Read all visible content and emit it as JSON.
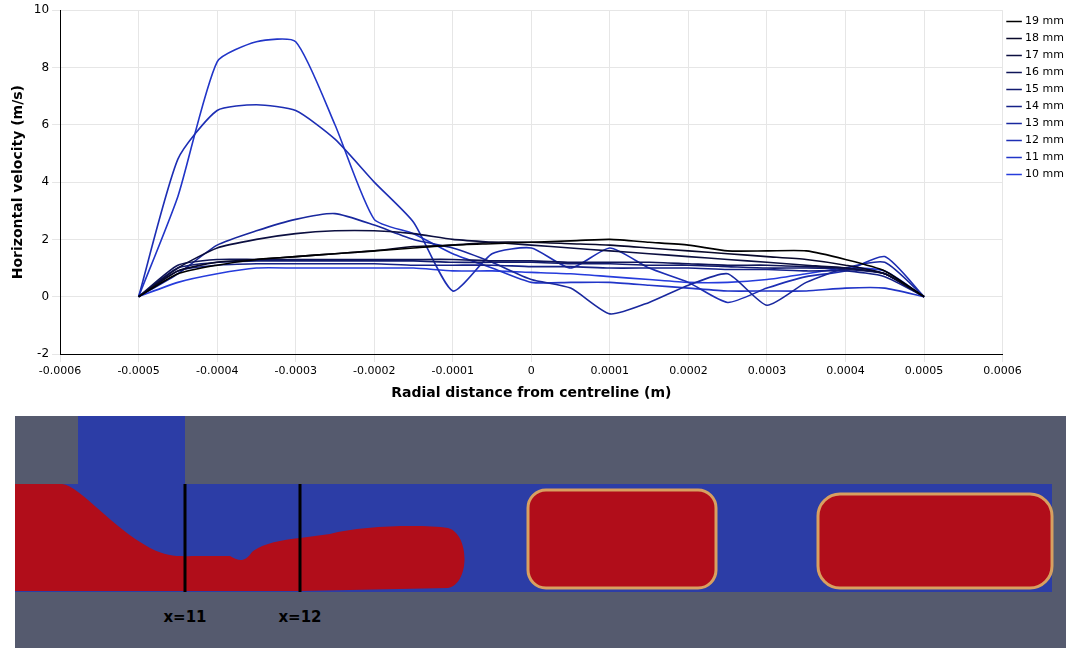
{
  "chart_data": {
    "type": "line",
    "x_label": "Radial distance from centreline (m)",
    "y_label": "Horizontal velocity (m/s)",
    "x": [
      -0.0005,
      -0.00045,
      -0.0004,
      -0.00035,
      -0.0003,
      -0.00025,
      -0.0002,
      -0.00015,
      -0.0001,
      -5e-05,
      0,
      5e-05,
      0.0001,
      0.00015,
      0.0002,
      0.00025,
      0.0003,
      0.00035,
      0.0004,
      0.00045,
      0.0005
    ],
    "series": [
      {
        "name": "19 mm",
        "color": "#000000",
        "values": [
          0,
          0.8,
          1.1,
          1.3,
          1.4,
          1.5,
          1.6,
          1.7,
          1.8,
          1.85,
          1.9,
          1.95,
          2.0,
          1.9,
          1.8,
          1.6,
          1.6,
          1.6,
          1.3,
          0.9,
          0
        ]
      },
      {
        "name": "18 mm",
        "color": "#08082a",
        "values": [
          0,
          0.9,
          1.2,
          1.3,
          1.4,
          1.5,
          1.6,
          1.75,
          1.8,
          1.9,
          1.9,
          1.85,
          1.8,
          1.7,
          1.6,
          1.5,
          1.4,
          1.3,
          1.1,
          0.8,
          0
        ]
      },
      {
        "name": "17 mm",
        "color": "#0c0f40",
        "values": [
          0,
          1.0,
          1.7,
          2.0,
          2.2,
          2.3,
          2.3,
          2.2,
          2.0,
          1.9,
          1.8,
          1.7,
          1.6,
          1.5,
          1.4,
          1.3,
          1.2,
          1.1,
          1.0,
          0.8,
          0
        ]
      },
      {
        "name": "16 mm",
        "color": "#0f1558",
        "values": [
          0,
          1.1,
          1.3,
          1.3,
          1.3,
          1.3,
          1.3,
          1.3,
          1.3,
          1.25,
          1.25,
          1.2,
          1.2,
          1.2,
          1.15,
          1.1,
          1.1,
          1.05,
          1.0,
          0.8,
          0
        ]
      },
      {
        "name": "15 mm",
        "color": "#121b70",
        "values": [
          0,
          1.0,
          1.2,
          1.25,
          1.25,
          1.25,
          1.25,
          1.25,
          1.2,
          1.2,
          1.2,
          1.15,
          1.15,
          1.1,
          1.1,
          1.05,
          1.0,
          1.0,
          0.95,
          0.8,
          0
        ]
      },
      {
        "name": "14 mm",
        "color": "#152188",
        "values": [
          0,
          0.9,
          1.1,
          1.15,
          1.15,
          1.15,
          1.15,
          1.1,
          1.1,
          1.1,
          1.05,
          1.05,
          1.0,
          1.0,
          1.0,
          0.95,
          0.95,
          0.9,
          0.9,
          0.7,
          0
        ]
      },
      {
        "name": "13 mm",
        "color": "#19289e",
        "values": [
          0,
          0.8,
          1.8,
          2.3,
          2.7,
          2.9,
          2.5,
          2.0,
          1.7,
          1.2,
          0.6,
          0.3,
          -0.6,
          -0.2,
          0.4,
          0.8,
          -0.3,
          0.5,
          1.0,
          1.2,
          0
        ]
      },
      {
        "name": "12 mm",
        "color": "#1d2eb4",
        "values": [
          0,
          4.8,
          6.5,
          6.7,
          6.5,
          5.5,
          4.0,
          2.6,
          0.2,
          1.5,
          1.7,
          1.0,
          1.7,
          1.0,
          0.5,
          -0.2,
          0.3,
          0.7,
          0.9,
          1.4,
          0
        ]
      },
      {
        "name": "11 mm",
        "color": "#2135c8",
        "values": [
          0,
          3.5,
          8.2,
          8.9,
          8.9,
          6.0,
          2.7,
          2.2,
          1.5,
          1.0,
          0.5,
          0.5,
          0.5,
          0.4,
          0.3,
          0.2,
          0.2,
          0.2,
          0.3,
          0.3,
          0
        ]
      },
      {
        "name": "10 mm",
        "color": "#263cdc",
        "values": [
          0,
          0.5,
          0.8,
          1.0,
          1.0,
          1.0,
          1.0,
          1.0,
          0.9,
          0.9,
          0.85,
          0.8,
          0.7,
          0.6,
          0.5,
          0.5,
          0.6,
          0.8,
          1.0,
          0.9,
          0
        ]
      }
    ],
    "xlim": [
      -0.0006,
      0.0006
    ],
    "xticks": [
      -0.0006,
      -0.0005,
      -0.0004,
      -0.0003,
      -0.0002,
      -0.0001,
      0,
      0.0001,
      0.0002,
      0.0003,
      0.0004,
      0.0005,
      0.0006
    ],
    "ylim": [
      -2,
      10
    ],
    "yticks": [
      -2,
      0,
      2,
      4,
      6,
      8,
      10
    ],
    "grid": true,
    "legend": "right"
  },
  "simulation_image": {
    "labels": [
      "x=11",
      "x=12"
    ]
  }
}
